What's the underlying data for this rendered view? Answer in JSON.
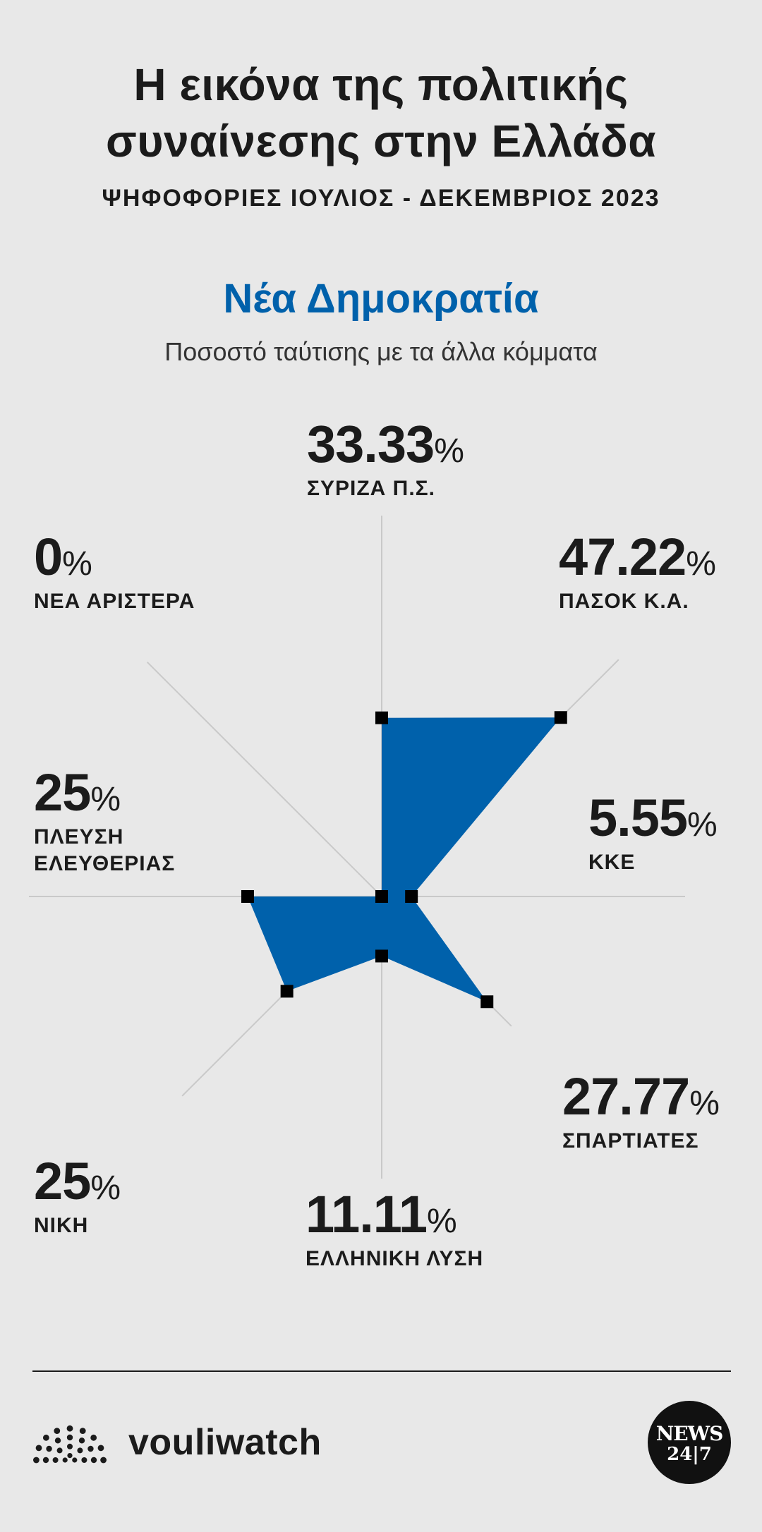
{
  "header": {
    "title_line1": "Η εικόνα της πολιτικής",
    "title_line2": "συναίνεσης στην Ελλάδα",
    "subtitle": "ΨΗΦΟΦΟΡΙΕΣ ΙΟΥΛΙΟΣ - ΔΕΚΕΜΒΡΙΟΣ 2023",
    "party": "Νέα Δημοκρατία",
    "party_subtitle": "Ποσοστό ταύτισης με τα άλλα κόμματα"
  },
  "colors": {
    "fill": "#0061ab",
    "marker": "#000000",
    "axis": "#c9c9c9",
    "background": "#e8e8e8"
  },
  "chart_data": {
    "type": "radar",
    "title": "Νέα Δημοκρατία",
    "subtitle": "Ποσοστό ταύτισης με τα άλλα κόμματα",
    "unit": "%",
    "categories": [
      "ΣΥΡΙΖΑ Π.Σ.",
      "ΠΑΣΟΚ Κ.Α.",
      "ΚΚΕ",
      "ΣΠΑΡΤΙΑΤΕΣ",
      "ΕΛΛΗΝΙΚΗ ΛΥΣΗ",
      "ΝΙΚΗ",
      "ΠΛΕΥΣΗ ΕΛΕΥΘΕΡΙΑΣ",
      "ΝΕΑ ΑΡΙΣΤΕΡΑ"
    ],
    "values": [
      33.33,
      47.22,
      5.55,
      27.77,
      11.11,
      25,
      25,
      0
    ],
    "value_labels": [
      "33.33",
      "47.22",
      "5.55",
      "27.77",
      "11.11",
      "25",
      "25",
      "0"
    ],
    "rlim": [
      0,
      100
    ]
  },
  "footer": {
    "brand": "vouliwatch",
    "logo_line1": "NEWS",
    "logo_line2": "24|7"
  }
}
